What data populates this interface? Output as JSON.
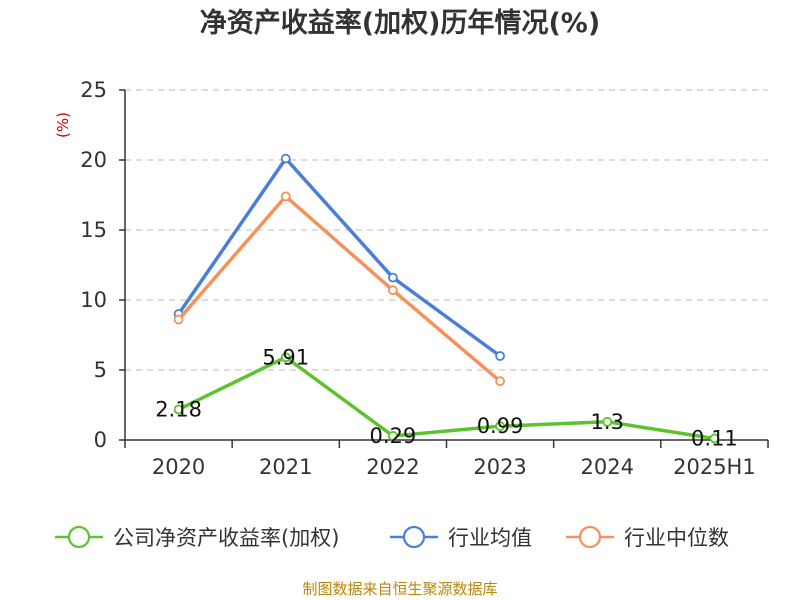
{
  "chart_data": {
    "type": "line",
    "title": "净资产收益率(加权)历年情况(%)",
    "ylabel": "(%)",
    "categories": [
      "2020",
      "2021",
      "2022",
      "2023",
      "2024",
      "2025H1"
    ],
    "ylim": [
      0,
      25
    ],
    "yticks": [
      0,
      5,
      10,
      15,
      20,
      25
    ],
    "grid": true,
    "legend_position": "bottom",
    "series": [
      {
        "name": "公司净资产收益率(加权)",
        "color": "#5cc22e",
        "values": [
          2.18,
          5.91,
          0.29,
          0.99,
          1.3,
          0.11
        ],
        "labels": [
          "2.18",
          "5.91",
          "0.29",
          "0.99",
          "1.3",
          "0.11"
        ]
      },
      {
        "name": "行业均值",
        "color": "#4a7fd8",
        "values": [
          9.0,
          20.1,
          11.6,
          6.0,
          null,
          null
        ]
      },
      {
        "name": "行业中位数",
        "color": "#f5915a",
        "values": [
          8.6,
          17.4,
          10.7,
          4.2,
          null,
          null
        ]
      }
    ]
  },
  "source": "制图数据来自恒生聚源数据库"
}
